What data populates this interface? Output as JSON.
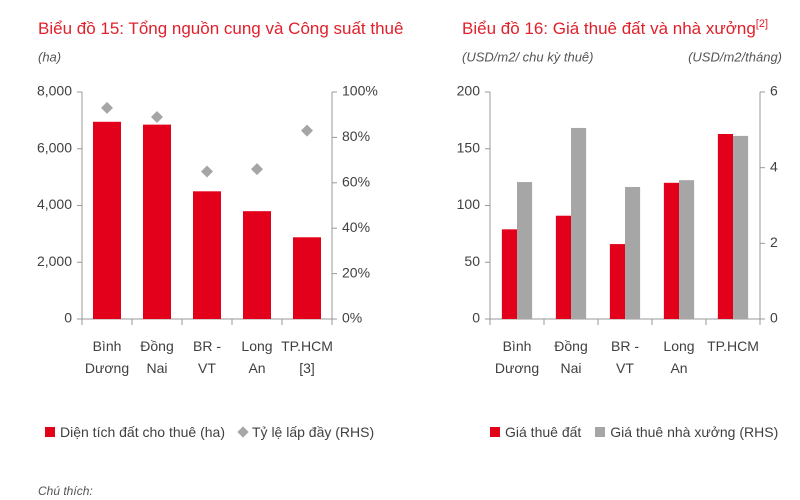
{
  "chart_data": [
    {
      "type": "bar",
      "title": "Biểu đồ 15: Tổng nguồn cung và Công suất thuê",
      "y_label": "(ha)",
      "categories": [
        "Bình Dương",
        "Đồng Nai",
        "BR - VT",
        "Long An",
        "TP.HCM [3]"
      ],
      "series": [
        {
          "name": "Diện tích đất cho thuê (ha)",
          "color": "#e3001b",
          "values": [
            6950,
            6850,
            4500,
            3800,
            2880
          ]
        },
        {
          "name": "Tỷ lệ lấp đầy (RHS)",
          "color": "#a6a6a6",
          "axis": "y2",
          "marker": "diamond",
          "values": [
            93,
            89,
            65,
            66,
            83
          ]
        }
      ],
      "ylim": [
        0,
        8000
      ],
      "yticks": [
        0,
        {
          "value": 2000,
          "label": "2,000"
        },
        {
          "value": 4000,
          "label": "4,000"
        },
        {
          "value": 6000,
          "label": "6,000"
        },
        {
          "value": 8000,
          "label": "8,000"
        }
      ],
      "y2lim": [
        0,
        100
      ],
      "y2ticks": [
        {
          "value": 0,
          "label": "0%"
        },
        {
          "value": 20,
          "label": "20%"
        },
        {
          "value": 40,
          "label": "40%"
        },
        {
          "value": 60,
          "label": "60%"
        },
        {
          "value": 80,
          "label": "80%"
        },
        {
          "value": 100,
          "label": "100%"
        }
      ]
    },
    {
      "type": "bar",
      "title": "Biểu đồ 16: Giá thuê đất và nhà xưởng",
      "title_note": "[2]",
      "y_label": "(USD/m2/ chu kỳ thuê)",
      "y2_label": "(USD/m2/tháng)",
      "categories": [
        "Bình Dương",
        "Đồng Nai",
        "BR - VT",
        "Long An",
        "TP.HCM"
      ],
      "series": [
        {
          "name": "Giá thuê đất",
          "color": "#e3001b",
          "values": [
            79,
            91,
            66,
            120,
            163
          ]
        },
        {
          "name": "Giá thuê nhà xưởng (RHS)",
          "color": "#a6a6a6",
          "axis": "y2",
          "values": [
            3.62,
            5.05,
            3.49,
            3.67,
            4.84
          ]
        }
      ],
      "ylim": [
        0,
        200
      ],
      "yticks": [
        0,
        50,
        100,
        150,
        200
      ],
      "y2lim": [
        0,
        6
      ],
      "y2ticks": [
        0,
        2,
        4,
        6
      ]
    }
  ],
  "notes": "Chú thích:"
}
